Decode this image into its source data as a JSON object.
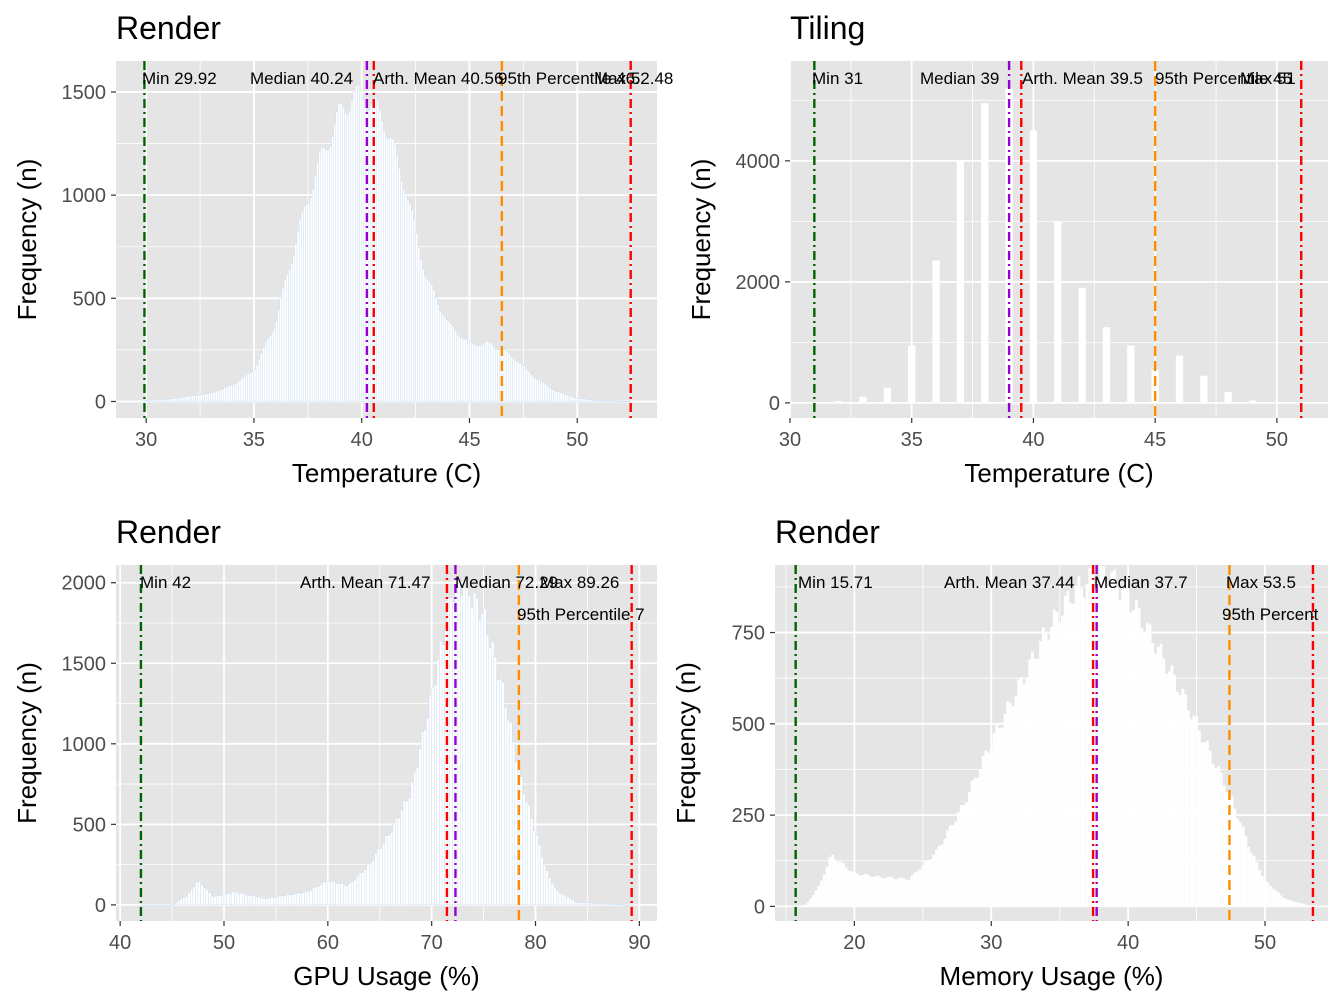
{
  "colors": {
    "panel_bg": "#e5e5e5",
    "grid_major": "#ffffff",
    "bar_fill": "#ffffff",
    "bar_outline_render": "#c6dbef",
    "min_line": "#006400",
    "median_line": "#9400d3",
    "mean_line": "#ff0000",
    "p95_line": "#ff8c00",
    "max_line": "#ff0000"
  },
  "chart_data": [
    {
      "type": "histogram",
      "title": "Render",
      "xlabel": "Temperature (C)",
      "ylabel": "Frequency (n)",
      "xlim": [
        28.6,
        53.7
      ],
      "ylim": [
        -80,
        1650
      ],
      "xticks": [
        30,
        35,
        40,
        45,
        50
      ],
      "yticks": [
        0,
        500,
        1000,
        1500
      ],
      "bin_width": 0.1,
      "distribution": {
        "x": [
          29.9,
          31,
          32,
          33,
          34,
          35,
          36,
          37,
          38,
          39,
          39.6,
          40.2,
          41,
          42,
          43,
          44,
          45,
          46,
          47,
          48,
          49,
          50,
          51,
          52.5
        ],
        "y": [
          5,
          10,
          25,
          40,
          80,
          150,
          380,
          800,
          1150,
          1400,
          1480,
          1470,
          1380,
          1050,
          600,
          380,
          280,
          280,
          220,
          120,
          50,
          15,
          5,
          0
        ]
      },
      "stats": [
        {
          "label": "Min 29.92",
          "value": 29.92,
          "kind": "min"
        },
        {
          "label": "Median 40.24",
          "value": 40.24,
          "kind": "median"
        },
        {
          "label": "Arth. Mean 40.56",
          "value": 40.56,
          "kind": "mean"
        },
        {
          "label": "95th Percentile 46.",
          "value": 46.5,
          "kind": "p95"
        },
        {
          "label": "Max 52.48",
          "value": 52.48,
          "kind": "max"
        }
      ]
    },
    {
      "type": "histogram",
      "title": "Tiling",
      "xlabel": "Temperature (C)",
      "ylabel": "Frequency (n)",
      "xlim": [
        30,
        52.1
      ],
      "ylim": [
        -250,
        5650
      ],
      "xticks": [
        30,
        35,
        40,
        45,
        50
      ],
      "yticks": [
        0,
        2000,
        4000
      ],
      "bin_width": 0.3,
      "bars": {
        "x": [
          32,
          33,
          34,
          35,
          36,
          37,
          38,
          39,
          40,
          41,
          42,
          43,
          44,
          45,
          46,
          47,
          48,
          49
        ],
        "y": [
          30,
          100,
          250,
          950,
          2350,
          4000,
          4950,
          5200,
          4500,
          3000,
          1900,
          1250,
          950,
          550,
          780,
          450,
          180,
          40
        ]
      },
      "stats": [
        {
          "label": "Min 31",
          "value": 31,
          "kind": "min"
        },
        {
          "label": "Median 39",
          "value": 39,
          "kind": "median"
        },
        {
          "label": "Arth. Mean 39.5",
          "value": 39.5,
          "kind": "mean"
        },
        {
          "label": "95th Percentile 45",
          "value": 45,
          "kind": "p95"
        },
        {
          "label": "Max 51",
          "value": 51,
          "kind": "max"
        }
      ]
    },
    {
      "type": "histogram",
      "title": "Render",
      "xlabel": "GPU Usage (%)",
      "ylabel": "Frequency (n)",
      "xlim": [
        39.6,
        91.7
      ],
      "ylim": [
        -100,
        2110
      ],
      "xticks": [
        40,
        50,
        60,
        70,
        80,
        90
      ],
      "yticks": [
        0,
        500,
        1000,
        1500,
        2000
      ],
      "bin_width": 0.25,
      "distribution": {
        "x": [
          42,
          45,
          46.5,
          47.5,
          49,
          51,
          54,
          58,
          60,
          62,
          64,
          66,
          68,
          70,
          72,
          73,
          75,
          77,
          78.5,
          80,
          81,
          82,
          84,
          89.3
        ],
        "y": [
          0,
          0,
          60,
          150,
          50,
          80,
          40,
          80,
          150,
          120,
          250,
          450,
          700,
          1300,
          1950,
          2000,
          1800,
          1300,
          800,
          450,
          220,
          90,
          15,
          0
        ]
      },
      "stats": [
        {
          "label": "Min 42",
          "value": 42,
          "kind": "min"
        },
        {
          "label": "Arth. Mean 71.47",
          "value": 71.47,
          "kind": "mean"
        },
        {
          "label": "Median 72.29",
          "value": 72.29,
          "kind": "median"
        },
        {
          "label": "Max 89.26",
          "value": 89.26,
          "kind": "max"
        },
        {
          "label": "95th Percentile 7",
          "value": 78.4,
          "kind": "p95"
        }
      ]
    },
    {
      "type": "histogram",
      "title": "Render",
      "xlabel": "Memory Usage (%)",
      "ylabel": "Frequency (n)",
      "xlim": [
        14.2,
        54.6
      ],
      "ylim": [
        -40,
        935
      ],
      "xticks": [
        20,
        30,
        40,
        50
      ],
      "yticks": [
        0,
        250,
        500,
        750
      ],
      "bin_width": 0.2,
      "distribution": {
        "x": [
          15.7,
          16.5,
          17.5,
          18.3,
          19,
          20,
          22,
          24,
          26,
          28,
          30,
          32,
          34,
          36,
          37.5,
          38.5,
          40,
          42,
          44,
          46,
          47.5,
          49,
          50,
          51.5,
          53.5
        ],
        "y": [
          0,
          5,
          60,
          140,
          120,
          90,
          80,
          75,
          150,
          280,
          450,
          600,
          750,
          860,
          900,
          910,
          850,
          720,
          580,
          420,
          300,
          150,
          70,
          20,
          0
        ]
      },
      "stats": [
        {
          "label": "Min 15.71",
          "value": 15.71,
          "kind": "min"
        },
        {
          "label": "Arth. Mean 37.44",
          "value": 37.44,
          "kind": "mean"
        },
        {
          "label": "Median 37.7",
          "value": 37.7,
          "kind": "median"
        },
        {
          "label": "Max 53.5",
          "value": 53.5,
          "kind": "max"
        },
        {
          "label": "95th Percent",
          "value": 47.4,
          "kind": "p95"
        }
      ]
    }
  ]
}
